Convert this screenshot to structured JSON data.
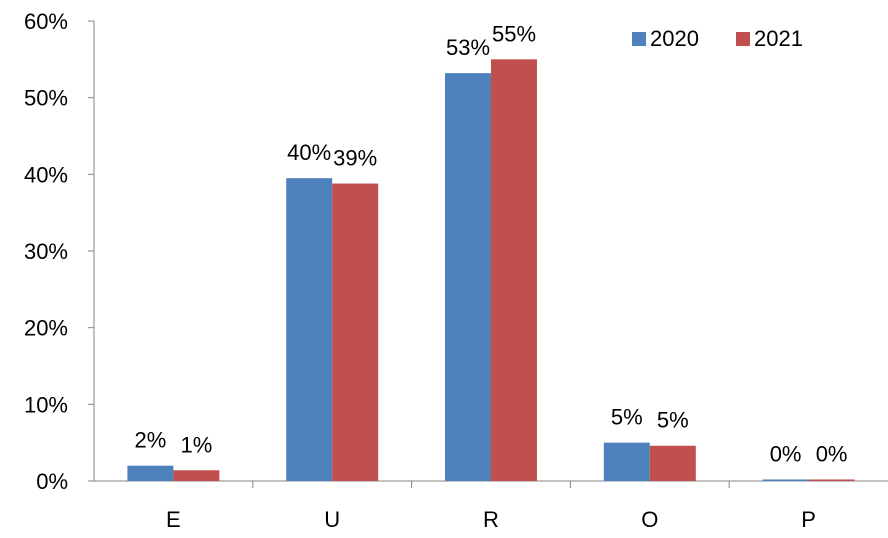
{
  "chart_data": {
    "type": "bar",
    "categories": [
      "E",
      "U",
      "R",
      "O",
      "P"
    ],
    "series": [
      {
        "name": "2020",
        "color": "#4F81BD",
        "values": [
          2.0,
          39.5,
          53.2,
          5.0,
          0.2
        ],
        "labels": [
          "2%",
          "40%",
          "53%",
          "5%",
          "0%"
        ]
      },
      {
        "name": "2021",
        "color": "#C0504D",
        "values": [
          1.4,
          38.8,
          55.0,
          4.6,
          0.2
        ],
        "labels": [
          "1%",
          "39%",
          "55%",
          "5%",
          "0%"
        ]
      }
    ],
    "ylim": [
      0,
      60
    ],
    "yticks": [
      0,
      10,
      20,
      30,
      40,
      50,
      60
    ],
    "ytick_labels": [
      "0%",
      "10%",
      "20%",
      "30%",
      "40%",
      "50%",
      "60%"
    ],
    "grid": false,
    "legend_position": "top-right"
  }
}
